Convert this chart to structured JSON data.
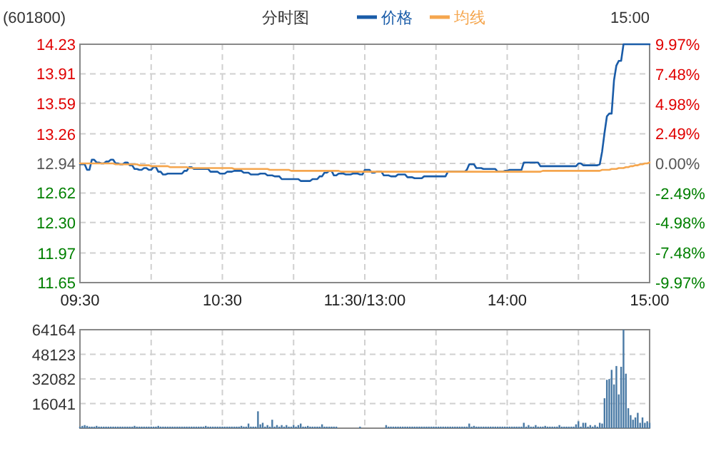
{
  "chart_data": [
    {
      "type": "line",
      "title": "(601800)",
      "subtitle": "分时图",
      "annotations": [
        "15:00"
      ],
      "categories": [
        "09:30",
        null,
        null,
        null,
        null,
        null,
        null,
        null,
        null,
        null,
        null,
        null,
        null,
        null,
        null,
        null,
        null,
        null,
        null,
        null,
        null,
        null,
        null,
        null,
        null,
        null,
        null,
        null,
        null,
        null,
        null,
        null,
        null,
        null,
        null,
        null,
        null,
        null,
        null,
        null,
        null,
        null,
        null,
        null,
        null,
        null,
        null,
        null,
        null,
        null,
        null,
        null,
        null,
        null,
        null,
        null,
        null,
        null,
        null,
        null,
        "10:30",
        null,
        null,
        null,
        null,
        null,
        null,
        null,
        null,
        null,
        null,
        null,
        null,
        null,
        null,
        null,
        null,
        null,
        null,
        null,
        null,
        null,
        null,
        null,
        null,
        null,
        null,
        null,
        null,
        null,
        null,
        null,
        null,
        null,
        null,
        null,
        null,
        null,
        null,
        null,
        null,
        null,
        null,
        null,
        null,
        null,
        null,
        null,
        null,
        null,
        null,
        null,
        null,
        null,
        null,
        null,
        null,
        null,
        null,
        null,
        "11:30/13:00",
        null,
        null,
        null,
        null,
        null,
        null,
        null,
        null,
        null,
        null,
        null,
        null,
        null,
        null,
        null,
        null,
        null,
        null,
        null,
        null,
        null,
        null,
        null,
        null,
        null,
        null,
        null,
        null,
        null,
        null,
        null,
        null,
        null,
        null,
        null,
        null,
        null,
        null,
        null,
        null,
        null,
        null,
        null,
        null,
        null,
        null,
        null,
        null,
        null,
        null,
        null,
        null,
        null,
        null,
        null,
        null,
        null,
        null,
        null,
        "14:00",
        null,
        null,
        null,
        null,
        null,
        null,
        null,
        null,
        null,
        null,
        null,
        null,
        null,
        null,
        null,
        null,
        null,
        null,
        null,
        null,
        null,
        null,
        null,
        null,
        null,
        null,
        null,
        null,
        null,
        null,
        null,
        null,
        null,
        null,
        null,
        null,
        null,
        null,
        null,
        null,
        null,
        null,
        null,
        null,
        null,
        null,
        null,
        null,
        null,
        null,
        null,
        null,
        null,
        null,
        null,
        null,
        null,
        null,
        null,
        "15:00"
      ],
      "series": [
        {
          "name": "价格",
          "color": "#1a5ca8",
          "values": [
            12.93,
            12.93,
            12.93,
            12.87,
            12.87,
            12.98,
            12.98,
            12.95,
            12.95,
            12.94,
            12.94,
            12.96,
            12.96,
            12.98,
            12.98,
            12.94,
            12.94,
            12.93,
            12.93,
            12.95,
            12.95,
            12.92,
            12.92,
            12.88,
            12.88,
            12.87,
            12.87,
            12.89,
            12.89,
            12.87,
            12.87,
            12.9,
            12.9,
            12.85,
            12.85,
            12.82,
            12.82,
            12.83,
            12.83,
            12.83,
            12.83,
            12.83,
            12.83,
            12.83,
            12.86,
            12.86,
            12.9,
            12.9,
            12.88,
            12.88,
            12.88,
            12.88,
            12.88,
            12.88,
            12.88,
            12.85,
            12.85,
            12.85,
            12.85,
            12.83,
            12.83,
            12.83,
            12.85,
            12.85,
            12.85,
            12.86,
            12.86,
            12.86,
            12.86,
            12.84,
            12.84,
            12.84,
            12.82,
            12.82,
            12.82,
            12.82,
            12.83,
            12.83,
            12.83,
            12.81,
            12.81,
            12.81,
            12.8,
            12.8,
            12.8,
            12.77,
            12.77,
            12.77,
            12.77,
            12.77,
            12.77,
            12.77,
            12.77,
            12.75,
            12.75,
            12.75,
            12.75,
            12.75,
            12.77,
            12.77,
            12.77,
            12.8,
            12.8,
            12.84,
            12.84,
            12.86,
            12.86,
            12.81,
            12.81,
            12.83,
            12.83,
            12.83,
            12.82,
            12.82,
            12.82,
            12.83,
            12.83,
            12.83,
            12.82,
            12.82,
            12.87,
            12.87,
            12.87,
            12.84,
            12.84,
            12.85,
            12.85,
            12.85,
            12.81,
            12.81,
            12.81,
            12.8,
            12.8,
            12.8,
            12.82,
            12.82,
            12.82,
            12.82,
            12.79,
            12.79,
            12.79,
            12.78,
            12.78,
            12.78,
            12.78,
            12.8,
            12.8,
            12.8,
            12.8,
            12.8,
            12.8,
            12.8,
            12.8,
            12.8,
            12.8,
            12.85,
            12.85,
            12.85,
            12.85,
            12.85,
            12.85,
            12.85,
            12.85,
            12.87,
            12.93,
            12.93,
            12.93,
            12.89,
            12.89,
            12.89,
            12.88,
            12.88,
            12.88,
            12.88,
            12.88,
            12.88,
            12.85,
            12.85,
            12.85,
            12.86,
            12.86,
            12.87,
            12.87,
            12.87,
            12.87,
            12.87,
            12.87,
            12.95,
            12.95,
            12.95,
            12.95,
            12.95,
            12.95,
            12.95,
            12.91,
            12.91,
            12.91,
            12.91,
            12.91,
            12.91,
            12.91,
            12.91,
            12.91,
            12.91,
            12.91,
            12.91,
            12.91,
            12.91,
            12.91,
            12.91,
            12.94,
            12.94,
            12.92,
            12.92,
            12.92,
            12.92,
            12.92,
            12.92,
            12.92,
            12.93,
            13.07,
            13.27,
            13.45,
            13.48,
            13.48,
            13.84,
            14.0,
            14.05,
            14.05,
            14.23,
            14.23,
            14.23,
            14.23,
            14.23,
            14.23,
            14.23,
            14.23,
            14.23,
            14.23,
            14.23,
            14.23
          ]
        },
        {
          "name": "均线",
          "color": "#f5a64e",
          "values": [
            12.94,
            12.94,
            12.94,
            12.94,
            12.94,
            12.94,
            12.94,
            12.94,
            12.94,
            12.94,
            12.94,
            12.94,
            12.94,
            12.94,
            12.94,
            12.93,
            12.93,
            12.93,
            12.93,
            12.93,
            12.93,
            12.93,
            12.93,
            12.93,
            12.93,
            12.92,
            12.92,
            12.92,
            12.92,
            12.92,
            12.91,
            12.91,
            12.91,
            12.91,
            12.91,
            12.91,
            12.91,
            12.91,
            12.9,
            12.9,
            12.9,
            12.9,
            12.9,
            12.9,
            12.9,
            12.9,
            12.89,
            12.89,
            12.89,
            12.89,
            12.89,
            12.89,
            12.89,
            12.89,
            12.89,
            12.89,
            12.89,
            12.89,
            12.89,
            12.89,
            12.89,
            12.89,
            12.89,
            12.89,
            12.89,
            12.88,
            12.88,
            12.88,
            12.88,
            12.88,
            12.88,
            12.88,
            12.88,
            12.88,
            12.88,
            12.88,
            12.88,
            12.88,
            12.88,
            12.88,
            12.87,
            12.87,
            12.87,
            12.87,
            12.87,
            12.87,
            12.87,
            12.87,
            12.87,
            12.86,
            12.86,
            12.86,
            12.86,
            12.86,
            12.86,
            12.86,
            12.86,
            12.86,
            12.86,
            12.86,
            12.86,
            12.86,
            12.86,
            12.86,
            12.86,
            12.86,
            12.86,
            12.86,
            12.86,
            12.86,
            12.85,
            12.85,
            12.85,
            12.85,
            12.85,
            12.85,
            12.85,
            12.85,
            12.85,
            12.85,
            12.85,
            12.85,
            12.85,
            12.85,
            12.85,
            12.85,
            12.85,
            12.85,
            12.85,
            12.85,
            12.85,
            12.85,
            12.85,
            12.85,
            12.85,
            12.85,
            12.85,
            12.85,
            12.85,
            12.85,
            12.85,
            12.85,
            12.85,
            12.85,
            12.85,
            12.85,
            12.85,
            12.85,
            12.85,
            12.85,
            12.85,
            12.85,
            12.85,
            12.85,
            12.85,
            12.85,
            12.85,
            12.85,
            12.85,
            12.85,
            12.85,
            12.85,
            12.85,
            12.85,
            12.85,
            12.85,
            12.85,
            12.85,
            12.85,
            12.85,
            12.85,
            12.85,
            12.85,
            12.85,
            12.85,
            12.85,
            12.85,
            12.85,
            12.85,
            12.85,
            12.85,
            12.85,
            12.85,
            12.85,
            12.85,
            12.85,
            12.85,
            12.85,
            12.85,
            12.85,
            12.85,
            12.85,
            12.85,
            12.85,
            12.85,
            12.86,
            12.86,
            12.86,
            12.86,
            12.86,
            12.86,
            12.86,
            12.86,
            12.86,
            12.86,
            12.86,
            12.86,
            12.86,
            12.86,
            12.86,
            12.86,
            12.86,
            12.86,
            12.86,
            12.86,
            12.86,
            12.86,
            12.86,
            12.86,
            12.86,
            12.87,
            12.87,
            12.87,
            12.87,
            12.88,
            12.88,
            12.88,
            12.89,
            12.89,
            12.89,
            12.9,
            12.9,
            12.91,
            12.91,
            12.92,
            12.92,
            12.93,
            12.93,
            12.94,
            12.94,
            12.95
          ]
        }
      ],
      "ylim": [
        11.65,
        14.23
      ],
      "yticks": [
        11.65,
        11.97,
        {
          "value": 12.3,
          "label": "12.30"
        },
        12.62,
        12.94,
        13.26,
        13.59,
        13.91,
        14.23
      ],
      "y2lim": [
        -9.97,
        9.97
      ],
      "y2ticks": [
        {
          "value": -9.97,
          "label": "-9.97%"
        },
        {
          "value": -7.48,
          "label": "-7.48%"
        },
        {
          "value": -4.98,
          "label": "-4.98%"
        },
        {
          "value": -2.49,
          "label": "-2.49%"
        },
        {
          "value": 0,
          "label": "0.00%"
        },
        {
          "value": 2.49,
          "label": "2.49%"
        },
        {
          "value": 4.98,
          "label": "4.98%"
        },
        {
          "value": 7.48,
          "label": "7.48%"
        },
        {
          "value": 9.97,
          "label": "9.97%"
        }
      ],
      "grid": true,
      "legend": "top"
    },
    {
      "type": "bar",
      "color": "#4a7aa5",
      "categories": [
        null,
        null,
        null,
        null,
        null,
        null,
        null,
        null,
        null,
        null,
        null,
        null,
        null,
        null,
        null,
        null,
        null,
        null,
        null,
        null,
        null,
        null,
        null,
        null,
        null,
        null,
        null,
        null,
        null,
        null,
        null,
        null,
        null,
        null,
        null,
        null,
        null,
        null,
        null,
        null,
        null,
        null,
        null,
        null,
        null,
        null,
        null,
        null,
        null,
        null,
        null,
        null,
        null,
        null,
        null,
        null,
        null,
        null,
        null,
        null,
        null,
        null,
        null,
        null,
        null,
        null,
        null,
        null,
        null,
        null,
        null,
        null,
        null,
        null,
        null,
        null,
        null,
        null,
        null,
        null,
        null,
        null,
        null,
        null,
        null,
        null,
        null,
        null,
        null,
        null,
        null,
        null,
        null,
        null,
        null,
        null,
        null,
        null,
        null,
        null,
        null,
        null,
        null,
        null,
        null,
        null,
        null,
        null,
        null,
        null,
        null,
        null,
        null,
        null,
        null,
        null,
        null,
        null,
        null,
        null,
        null,
        null,
        null,
        null,
        null,
        null,
        null,
        null,
        null,
        null,
        null,
        null,
        null,
        null,
        null,
        null,
        null,
        null,
        null,
        null,
        null,
        null,
        null,
        null,
        null,
        null,
        null,
        null,
        null,
        null,
        null,
        null,
        null,
        null,
        null,
        null,
        null,
        null,
        null,
        null,
        null,
        null,
        null,
        null,
        null,
        null,
        null,
        null,
        null,
        null,
        null,
        null,
        null,
        null,
        null,
        null,
        null,
        null,
        null,
        null,
        null,
        null,
        null,
        null,
        null,
        null,
        null,
        null,
        null,
        null,
        null,
        null,
        null,
        null,
        null,
        null,
        null,
        null,
        null,
        null,
        null,
        null,
        null,
        null,
        null,
        null,
        null,
        null,
        null,
        null,
        null,
        null,
        null,
        null,
        null,
        null,
        null,
        null,
        null,
        null,
        null,
        null,
        null,
        null,
        null,
        null,
        null,
        null,
        null,
        null,
        null,
        null,
        null,
        null,
        null,
        null,
        null,
        null,
        null,
        null,
        null
      ],
      "values": [
        1000,
        1500,
        2000,
        1500,
        1000,
        1000,
        1000,
        1500,
        1000,
        1000,
        1000,
        1000,
        1000,
        1000,
        1000,
        1000,
        1000,
        1000,
        1000,
        1000,
        1000,
        1000,
        1000,
        1500,
        1000,
        1000,
        1000,
        1000,
        1000,
        1000,
        1000,
        1000,
        1000,
        1500,
        1000,
        1000,
        1000,
        1000,
        1000,
        1000,
        1000,
        1000,
        1000,
        1000,
        1000,
        1000,
        1000,
        1000,
        1000,
        1000,
        1000,
        1000,
        1000,
        1500,
        1000,
        1000,
        1000,
        1000,
        1000,
        1000,
        1000,
        1000,
        1000,
        1000,
        1000,
        1000,
        1000,
        1000,
        1500,
        1000,
        1000,
        3000,
        1000,
        1000,
        1000,
        11000,
        2500,
        3500,
        1000,
        2000,
        1000,
        5500,
        1000,
        2000,
        1000,
        2000,
        1000,
        2000,
        1000,
        1000,
        2000,
        1000,
        2000,
        3000,
        1000,
        1000,
        1500,
        1000,
        1000,
        1000,
        1000,
        1000,
        2500,
        1000,
        1000,
        1000,
        1000,
        1000,
        1000,
        null,
        null,
        null,
        null,
        null,
        null,
        null,
        null,
        null,
        1000,
        null,
        null,
        null,
        null,
        null,
        null,
        null,
        null,
        null,
        null,
        2000,
        1000,
        1000,
        1000,
        1000,
        1000,
        1000,
        1000,
        1000,
        1000,
        1000,
        1000,
        1000,
        1000,
        1000,
        1000,
        1000,
        1000,
        1000,
        1000,
        1000,
        1000,
        1000,
        1000,
        1000,
        1000,
        1000,
        1000,
        1000,
        1000,
        1000,
        1000,
        1000,
        1000,
        1000,
        3000,
        1000,
        1500,
        1000,
        1000,
        1000,
        1000,
        1000,
        1000,
        1000,
        1000,
        1000,
        1000,
        1000,
        1000,
        1000,
        1000,
        1000,
        1000,
        1000,
        1000,
        1000,
        1000,
        3500,
        1000,
        2000,
        1000,
        1000,
        2000,
        1000,
        1000,
        1000,
        1500,
        1000,
        1000,
        1000,
        1000,
        1000,
        2000,
        1000,
        1000,
        1000,
        1000,
        1000,
        1000,
        2500,
        4500,
        1000,
        3500,
        3500,
        1000,
        2000,
        1000,
        2000,
        1000,
        3500,
        3000,
        19500,
        31500,
        32000,
        38000,
        28500,
        40500,
        22000,
        40000,
        64164,
        35500,
        13000,
        8500,
        5500,
        7000,
        10000,
        3500,
        7000,
        3500,
        4500,
        3500
      ],
      "ylim": [
        0,
        64164
      ],
      "yticks": [
        16041,
        32082,
        48123,
        64164
      ],
      "tick_labels": "y",
      "grid": true
    }
  ]
}
